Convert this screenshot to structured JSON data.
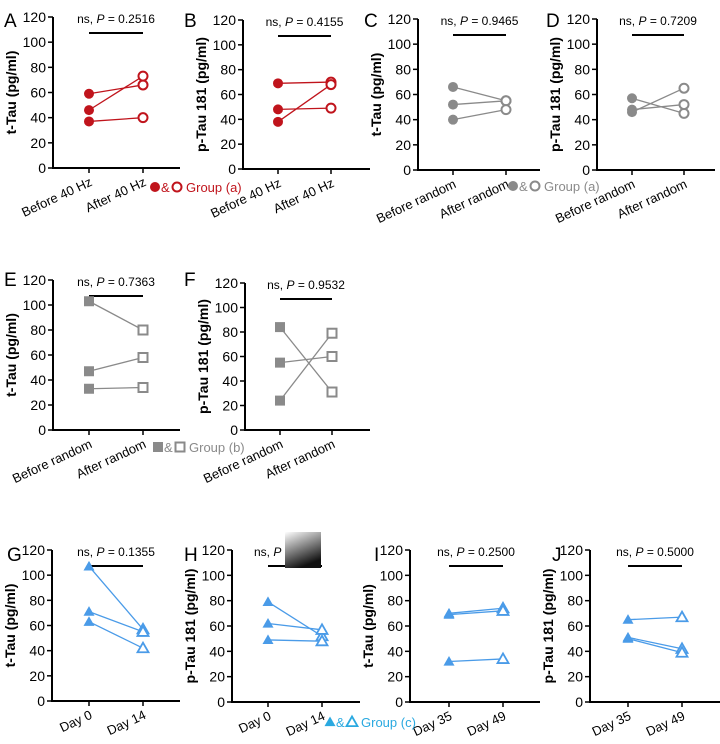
{
  "figure": {
    "legends": [
      {
        "id": "group-a-red",
        "marker": "circle",
        "text": "Group (a)",
        "amp": "&",
        "color": "#c0141c",
        "after_panel": "A"
      },
      {
        "id": "group-a-grey",
        "marker": "circle",
        "text": "Group (a)",
        "amp": "&",
        "color": "#8a8a8a",
        "after_panel": "C"
      },
      {
        "id": "group-b",
        "marker": "square",
        "text": "Group (b)",
        "amp": "&",
        "color": "#8a8a8a",
        "after_panel": "E"
      },
      {
        "id": "group-c",
        "marker": "triangle",
        "text": "Group (c)",
        "amp": "&",
        "color": "#2aa9e0",
        "after_panel": "H"
      }
    ]
  },
  "chart_data": [
    {
      "panel": "A",
      "type": "line",
      "ylabel": "t-Tau (pg/ml)",
      "ylim": [
        0,
        120
      ],
      "yticks": [
        0,
        20,
        40,
        60,
        80,
        100,
        120
      ],
      "categories": [
        "Before 40 Hz",
        "After 40 Hz"
      ],
      "stat": {
        "prefix": "ns, ",
        "p_label": "P",
        "value": " = 0.2516"
      },
      "marker": "circle",
      "color": "#c0141c",
      "series": [
        {
          "values": [
            59,
            66
          ]
        },
        {
          "values": [
            46,
            73
          ]
        },
        {
          "values": [
            37,
            40
          ]
        }
      ]
    },
    {
      "panel": "B",
      "type": "line",
      "ylabel": "p-Tau 181 (pg/ml)",
      "ylim": [
        0,
        120
      ],
      "yticks": [
        0,
        20,
        40,
        60,
        80,
        100,
        120
      ],
      "categories": [
        "Before 40 Hz",
        "After 40 Hz"
      ],
      "stat": {
        "prefix": "ns, ",
        "p_label": "P",
        "value": " = 0.4155"
      },
      "marker": "circle",
      "color": "#c0141c",
      "series": [
        {
          "values": [
            69,
            70
          ]
        },
        {
          "values": [
            48,
            49
          ]
        },
        {
          "values": [
            38,
            68
          ]
        }
      ]
    },
    {
      "panel": "C",
      "type": "line",
      "ylabel": "t-Tau (pg/ml)",
      "ylim": [
        0,
        120
      ],
      "yticks": [
        0,
        20,
        40,
        60,
        80,
        100,
        120
      ],
      "categories": [
        "Before random",
        "After random"
      ],
      "stat": {
        "prefix": "ns, ",
        "p_label": "P",
        "value": " = 0.9465"
      },
      "marker": "circle",
      "color": "#8a8a8a",
      "series": [
        {
          "values": [
            66,
            55
          ]
        },
        {
          "values": [
            52,
            55
          ]
        },
        {
          "values": [
            40,
            48
          ]
        }
      ]
    },
    {
      "panel": "D",
      "type": "line",
      "ylabel": "p-Tau 181 (pg/ml)",
      "ylim": [
        0,
        120
      ],
      "yticks": [
        0,
        20,
        40,
        60,
        80,
        100,
        120
      ],
      "categories": [
        "Before random",
        "After random"
      ],
      "stat": {
        "prefix": "ns, ",
        "p_label": "P",
        "value": " = 0.7209"
      },
      "marker": "circle",
      "color": "#8a8a8a",
      "series": [
        {
          "values": [
            57,
            45
          ]
        },
        {
          "values": [
            48,
            52
          ]
        },
        {
          "values": [
            46,
            65
          ]
        }
      ]
    },
    {
      "panel": "E",
      "type": "line",
      "ylabel": "t-Tau (pg/ml)",
      "ylim": [
        0,
        120
      ],
      "yticks": [
        0,
        20,
        40,
        60,
        80,
        100,
        120
      ],
      "categories": [
        "Before random",
        "After random"
      ],
      "stat": {
        "prefix": "ns, ",
        "p_label": "P",
        "value": " = 0.7363"
      },
      "marker": "square",
      "color": "#8a8a8a",
      "series": [
        {
          "values": [
            103,
            80
          ]
        },
        {
          "values": [
            47,
            58
          ]
        },
        {
          "values": [
            33,
            34
          ]
        }
      ]
    },
    {
      "panel": "F",
      "type": "line",
      "ylabel": "p-Tau 181 (pg/ml)",
      "ylim": [
        0,
        120
      ],
      "yticks": [
        0,
        20,
        40,
        60,
        80,
        100,
        120
      ],
      "categories": [
        "Before random",
        "After random"
      ],
      "stat": {
        "prefix": "ns, ",
        "p_label": "P",
        "value": " = 0.9532"
      },
      "marker": "square",
      "color": "#8a8a8a",
      "series": [
        {
          "values": [
            84,
            31
          ]
        },
        {
          "values": [
            55,
            60
          ]
        },
        {
          "values": [
            24,
            79
          ]
        }
      ]
    },
    {
      "panel": "G",
      "type": "line",
      "ylabel": "t-Tau (pg/ml)",
      "ylim": [
        0,
        120
      ],
      "yticks": [
        0,
        20,
        40,
        60,
        80,
        100,
        120
      ],
      "categories": [
        "Day 0",
        "Day 14"
      ],
      "stat": {
        "prefix": "ns, ",
        "p_label": "P",
        "value": " = 0.1355"
      },
      "marker": "triangle",
      "color": "#4a9be8",
      "series": [
        {
          "values": [
            107,
            57
          ]
        },
        {
          "values": [
            71,
            55
          ]
        },
        {
          "values": [
            63,
            42
          ]
        }
      ]
    },
    {
      "panel": "H",
      "type": "line",
      "ylabel": "p-Tau 181 (pg/ml)",
      "ylim": [
        0,
        120
      ],
      "yticks": [
        0,
        20,
        40,
        60,
        80,
        100,
        120
      ],
      "categories": [
        "Day 0",
        "Day 14"
      ],
      "stat": {
        "prefix": "ns, ",
        "p_label": "P",
        "value": "",
        "obscured": true
      },
      "marker": "triangle",
      "color": "#4a9be8",
      "series": [
        {
          "values": [
            79,
            52
          ]
        },
        {
          "values": [
            62,
            57
          ]
        },
        {
          "values": [
            49,
            48
          ]
        }
      ]
    },
    {
      "panel": "I",
      "type": "line",
      "ylabel": "t-Tau (pg/ml)",
      "ylim": [
        0,
        120
      ],
      "yticks": [
        0,
        20,
        40,
        60,
        80,
        100,
        120
      ],
      "categories": [
        "Day 35",
        "Day 49"
      ],
      "stat": {
        "prefix": "ns, ",
        "p_label": "P",
        "value": " = 0.2500"
      },
      "marker": "triangle",
      "color": "#4a9be8",
      "series": [
        {
          "values": [
            70,
            74
          ]
        },
        {
          "values": [
            69,
            72
          ]
        },
        {
          "values": [
            32,
            34
          ]
        }
      ]
    },
    {
      "panel": "J",
      "type": "line",
      "ylabel": "p-Tau 181 (pg/ml)",
      "ylim": [
        0,
        120
      ],
      "yticks": [
        0,
        20,
        40,
        60,
        80,
        100,
        120
      ],
      "categories": [
        "Day 35",
        "Day 49"
      ],
      "stat": {
        "prefix": "ns, ",
        "p_label": "P",
        "value": " = 0.5000"
      },
      "marker": "triangle",
      "color": "#4a9be8",
      "series": [
        {
          "values": [
            65,
            67
          ]
        },
        {
          "values": [
            51,
            42
          ]
        },
        {
          "values": [
            50,
            39
          ]
        }
      ]
    }
  ]
}
